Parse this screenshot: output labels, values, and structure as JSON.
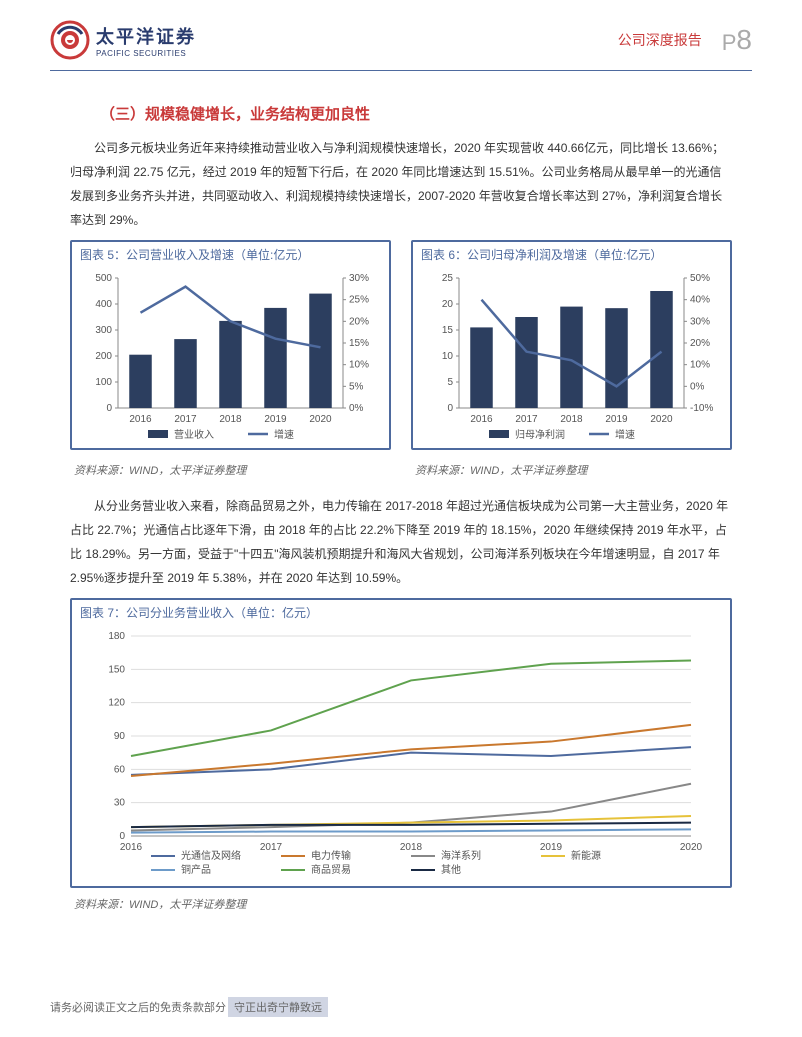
{
  "header": {
    "logo_cn": "太平洋证券",
    "logo_en": "PACIFIC SECURITIES",
    "report_type": "公司深度报告",
    "page_prefix": "P",
    "page_num": "8"
  },
  "section_title": "（三）规模稳健增长，业务结构更加良性",
  "para1": "公司多元板块业务近年来持续推动营业收入与净利润规模快速增长，2020 年实现营收 440.66亿元，同比增长 13.66%；归母净利润 22.75 亿元，经过 2019 年的短暂下行后，在 2020 年同比增速达到 15.51%。公司业务格局从最早单一的光通信发展到多业务齐头并进，共同驱动收入、利润规模持续快速增长，2007-2020 年营收复合增长率达到 27%，净利润复合增长率达到 29%。",
  "para2": "从分业务营业收入来看，除商品贸易之外，电力传输在 2017-2018 年超过光通信板块成为公司第一大主营业务，2020 年占比 22.7%；光通信占比逐年下滑，由 2018 年的占比 22.2%下降至 2019 年的 18.15%，2020 年继续保持 2019 年水平，占比 18.29%。另一方面，受益于\"十四五\"海风装机预期提升和海风大省规划，公司海洋系列板块在今年增速明显，自 2017 年 2.95%逐步提升至 2019 年 5.38%，并在 2020 年达到 10.59%。",
  "chart5": {
    "title": "图表 5：公司营业收入及增速（单位:亿元）",
    "type": "bar-line",
    "x_labels": [
      "2016",
      "2017",
      "2018",
      "2019",
      "2020"
    ],
    "bar_values": [
      205,
      265,
      335,
      385,
      440
    ],
    "line_values": [
      22,
      28,
      20,
      16,
      14
    ],
    "left_ylim": [
      0,
      500
    ],
    "left_ytick_step": 100,
    "right_ylim": [
      0,
      30
    ],
    "right_ytick_step": 5,
    "right_suffix": "%",
    "bar_color": "#2c3e5f",
    "line_color": "#4e6a9e",
    "bar_width": 0.5,
    "line_width": 2.5,
    "legend": [
      "营业收入",
      "增速"
    ],
    "bg_color": "#ffffff",
    "axis_color": "#888",
    "font_size": 10,
    "source": "资料来源：WIND，太平洋证券整理"
  },
  "chart6": {
    "title": "图表 6：公司归母净利润及增速（单位:亿元）",
    "type": "bar-line",
    "x_labels": [
      "2016",
      "2017",
      "2018",
      "2019",
      "2020"
    ],
    "bar_values": [
      15.5,
      17.5,
      19.5,
      19.2,
      22.5
    ],
    "line_values": [
      40,
      16,
      12,
      0,
      16
    ],
    "left_ylim": [
      0,
      25
    ],
    "left_ytick_step": 5,
    "right_ylim": [
      -10,
      50
    ],
    "right_ytick_step": 10,
    "right_suffix": "%",
    "bar_color": "#2c3e5f",
    "line_color": "#4e6a9e",
    "bar_width": 0.5,
    "line_width": 2.5,
    "legend": [
      "归母净利润",
      "增速"
    ],
    "bg_color": "#ffffff",
    "axis_color": "#888",
    "font_size": 10,
    "source": "资料来源：WIND，太平洋证券整理"
  },
  "chart7": {
    "title": "图表 7：公司分业务营业收入（单位：亿元）",
    "type": "line",
    "x_labels": [
      "2016",
      "2017",
      "2018",
      "2019",
      "2020"
    ],
    "ylim": [
      0,
      180
    ],
    "ytick_step": 30,
    "series": [
      {
        "name": "光通信及网络",
        "color": "#4e6a9e",
        "values": [
          55,
          60,
          75,
          72,
          80
        ]
      },
      {
        "name": "电力传输",
        "color": "#c9782e",
        "values": [
          54,
          65,
          78,
          85,
          100
        ]
      },
      {
        "name": "海洋系列",
        "color": "#888888",
        "values": [
          5,
          8,
          12,
          22,
          47
        ]
      },
      {
        "name": "新能源",
        "color": "#e6c23a",
        "values": [
          8,
          10,
          12,
          14,
          18
        ]
      },
      {
        "name": "铜产品",
        "color": "#6d9bc9",
        "values": [
          3,
          4,
          4,
          5,
          6
        ]
      },
      {
        "name": "商品贸易",
        "color": "#5fa24e",
        "values": [
          72,
          95,
          140,
          155,
          158
        ]
      },
      {
        "name": "其他",
        "color": "#1a2a44",
        "values": [
          8,
          10,
          10,
          11,
          12
        ]
      }
    ],
    "line_width": 2,
    "grid_color": "#ddd",
    "axis_color": "#888",
    "font_size": 10,
    "source": "资料来源：WIND，太平洋证券整理"
  },
  "footer": {
    "text": "请务必阅读正文之后的免责条款部分",
    "motto": "守正出奇宁静致远"
  }
}
